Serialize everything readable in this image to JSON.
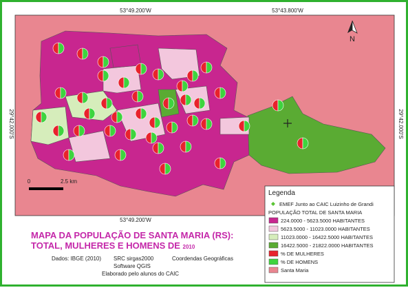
{
  "coords": {
    "top_left": "53°49.200'W",
    "top_right": "53°43.800'W",
    "bottom": "53°49.200'W",
    "left": "29°42.000'S",
    "right": "29°42.000'S"
  },
  "north": "N",
  "scale": {
    "start": "0",
    "end": "2.5 km"
  },
  "legend": {
    "title": "Legenda",
    "school": "EMEF Junto ao CAIC  Luizinho de Grandi",
    "group": "POPULAÇÃO TOTAL DE SANTA MARIA",
    "classes": [
      "224.0000 - 5623.5000 HABITANTES",
      "5623.5000 - 11023.0000 HABITANTES",
      "11023.0000 - 16422.5000 HABITANTES",
      "16422.5000 - 21822.0000 HABITANTES"
    ],
    "women": "% DE MULHERES",
    "men": "% DE HOMENS",
    "city": "Santa Maria"
  },
  "title": {
    "line1": "MAPA DA POPULAÇÃO DE SANTA MARIA (RS):",
    "line2": "TOTAL, MULHERES E HOMENS DE ",
    "year": "2010"
  },
  "credits": {
    "data": "Dados: IBGE (2010)",
    "src": "SRC sirgas2000",
    "geo": "Coordendas Geográficas",
    "software": "Software QGIS",
    "author": "Elaborado pelo alunos do CAIC"
  }
}
